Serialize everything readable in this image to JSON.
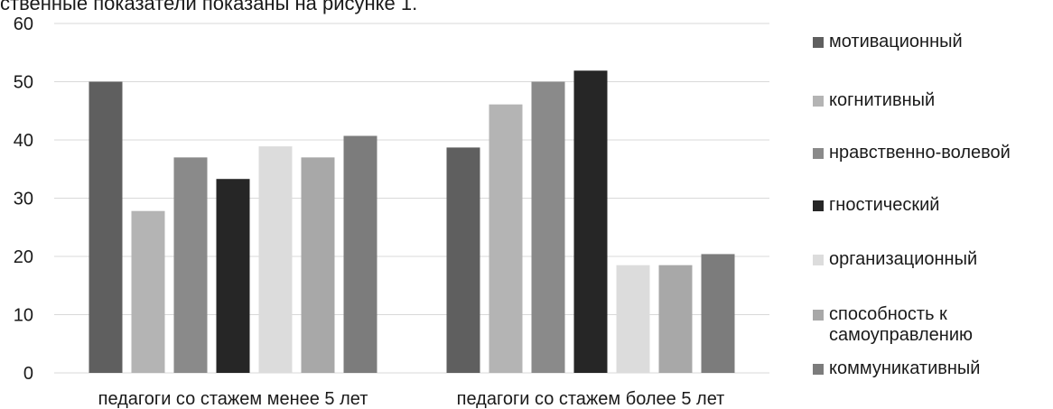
{
  "header": {
    "text": "ственные показатели показаны на рисунке 1."
  },
  "chart_data": {
    "type": "bar",
    "categories": [
      "педагоги со стажем менее 5 лет",
      "педагоги со стажем более 5 лет"
    ],
    "series": [
      {
        "name": "мотивационный",
        "color": "#5f5f5f",
        "values": [
          50,
          38.7
        ]
      },
      {
        "name": "когнитивный",
        "color": "#b4b4b4",
        "values": [
          27.8,
          46.1
        ]
      },
      {
        "name": "нравственно-волевой",
        "color": "#8a8a8a",
        "values": [
          37,
          50
        ]
      },
      {
        "name": "гностический",
        "color": "#262626",
        "values": [
          33.3,
          51.9
        ]
      },
      {
        "name": "организационный",
        "color": "#dcdcdc",
        "values": [
          38.9,
          18.5
        ]
      },
      {
        "name": "способность к самоуправлению",
        "color": "#a8a8a8",
        "values": [
          37,
          18.5
        ]
      },
      {
        "name": "коммуникативный",
        "color": "#7c7c7c",
        "values": [
          40.7,
          20.4
        ]
      }
    ],
    "ylim": [
      0,
      60
    ],
    "yticks": [
      0,
      10,
      20,
      30,
      40,
      50,
      60
    ],
    "grid": true,
    "legend_position": "right"
  }
}
